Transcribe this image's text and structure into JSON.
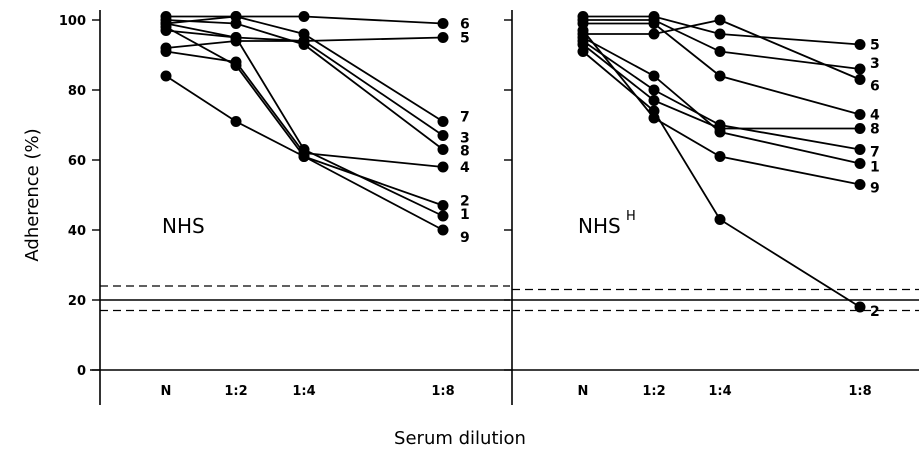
{
  "chart_data": [
    {
      "type": "line",
      "title": "NHS",
      "xlabel": "Serum dilution",
      "ylabel": "Adherence (%)",
      "categories": [
        "N",
        "1:2",
        "1:4",
        "1:8"
      ],
      "ylim": [
        0,
        100
      ],
      "yticks": [
        0,
        20,
        40,
        60,
        80,
        100
      ],
      "reference_lines": {
        "mean": 20,
        "upper": 24,
        "lower": 17
      },
      "series": [
        {
          "name": "1",
          "values": [
            97,
            95,
            63,
            44
          ]
        },
        {
          "name": "2",
          "values": [
            98,
            87,
            61,
            47
          ]
        },
        {
          "name": "3",
          "values": [
            99,
            95,
            94,
            67
          ]
        },
        {
          "name": "4",
          "values": [
            91,
            88,
            62,
            58
          ]
        },
        {
          "name": "5",
          "values": [
            92,
            94,
            94,
            95
          ]
        },
        {
          "name": "6",
          "values": [
            101,
            101,
            101,
            99
          ]
        },
        {
          "name": "7",
          "values": [
            99,
            101,
            96,
            71
          ]
        },
        {
          "name": "8",
          "values": [
            100,
            99,
            93,
            63
          ]
        },
        {
          "name": "9",
          "values": [
            84,
            71,
            61,
            40
          ]
        }
      ]
    },
    {
      "type": "line",
      "title": "NHS",
      "title_superscript": "H",
      "xlabel": "Serum dilution",
      "ylabel": "Adherence (%)",
      "categories": [
        "N",
        "1:2",
        "1:4",
        "1:8"
      ],
      "ylim": [
        0,
        100
      ],
      "yticks": [
        0,
        20,
        40,
        60,
        80,
        100
      ],
      "reference_lines": {
        "mean": 20,
        "upper": 23,
        "lower": 17
      },
      "series": [
        {
          "name": "1",
          "values": [
            95,
            84,
            68,
            59
          ]
        },
        {
          "name": "2",
          "values": [
            91,
            74,
            43,
            18
          ]
        },
        {
          "name": "3",
          "values": [
            100,
            100,
            91,
            86
          ]
        },
        {
          "name": "4",
          "values": [
            99,
            99,
            84,
            73
          ]
        },
        {
          "name": "5",
          "values": [
            101,
            101,
            96,
            93
          ]
        },
        {
          "name": "6",
          "values": [
            96,
            96,
            100,
            83
          ]
        },
        {
          "name": "7",
          "values": [
            94,
            80,
            70,
            63
          ]
        },
        {
          "name": "8",
          "values": [
            93,
            77,
            69,
            69
          ]
        },
        {
          "name": "9",
          "values": [
            97,
            72,
            61,
            53
          ]
        }
      ]
    }
  ]
}
